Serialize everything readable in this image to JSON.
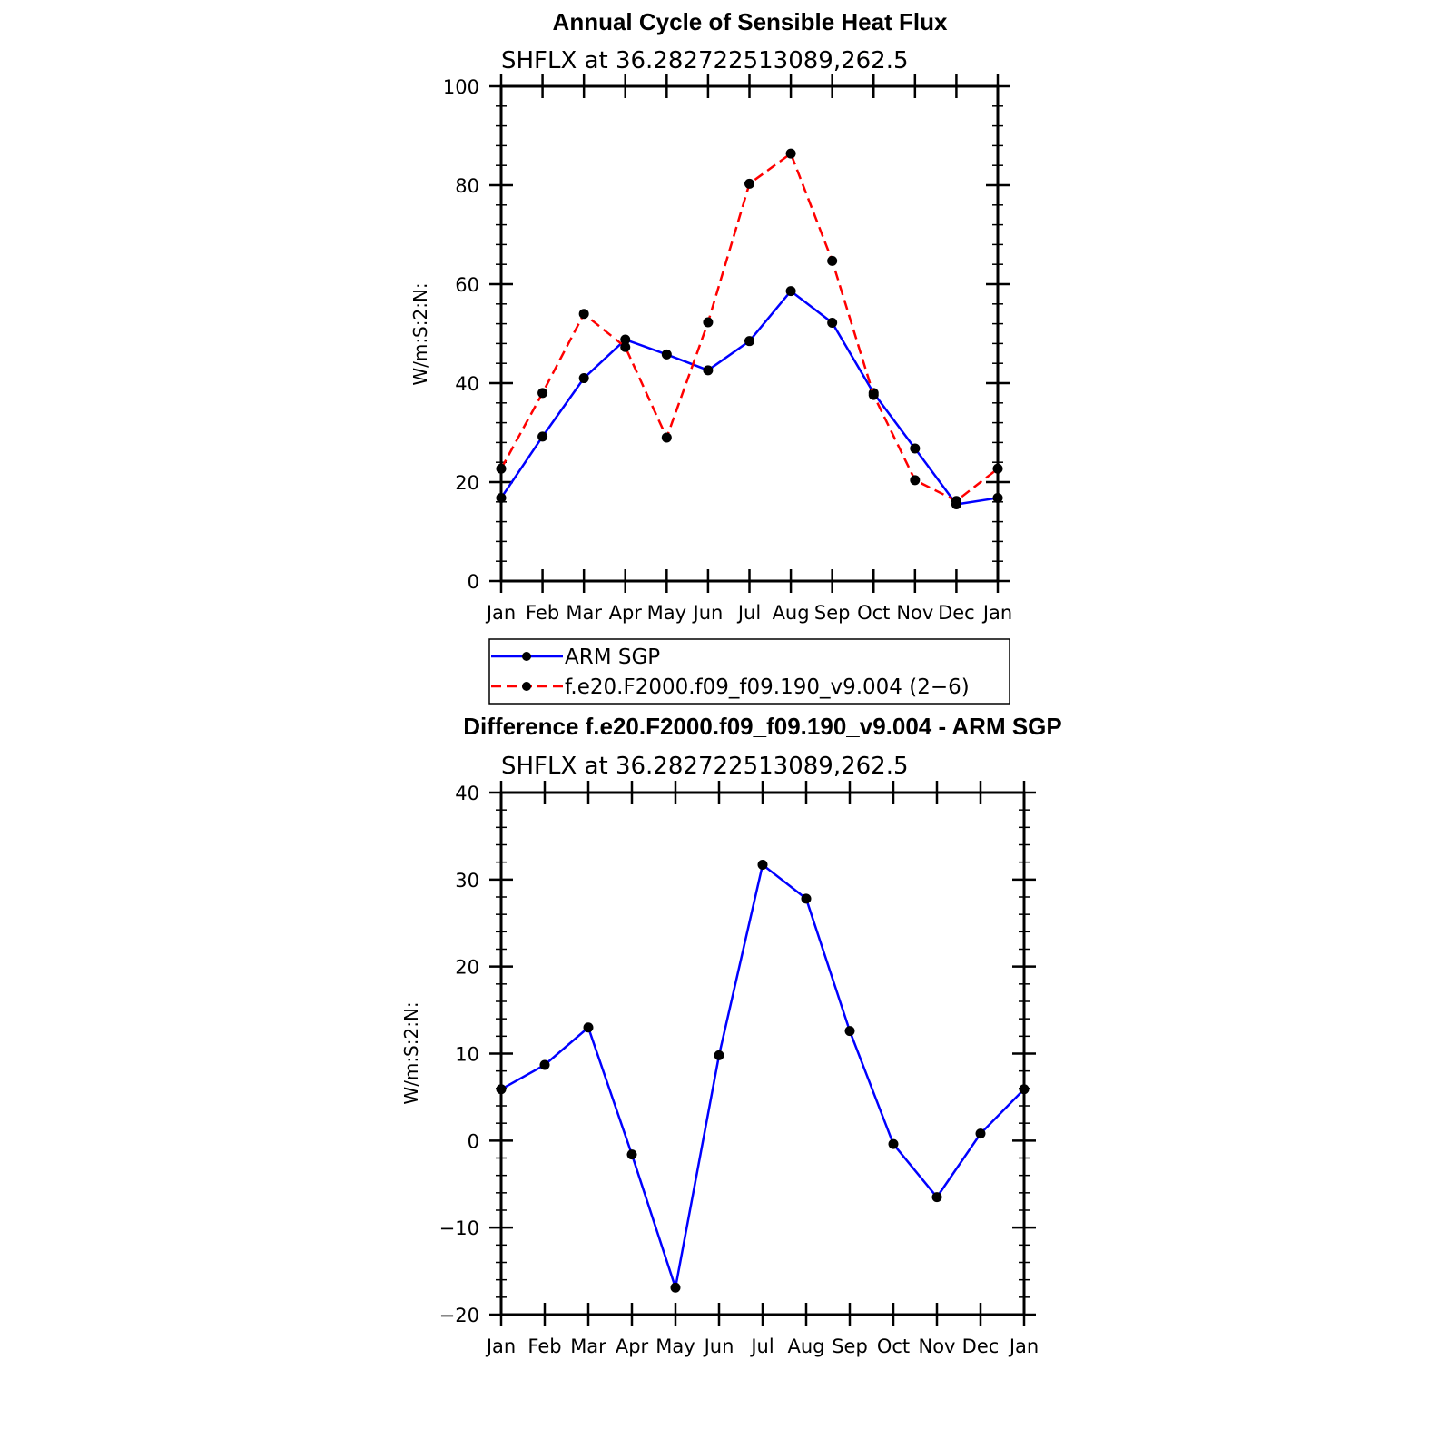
{
  "chart_data": [
    {
      "type": "line",
      "title": "Annual Cycle of Sensible Heat Flux",
      "subtitle": "SHFLX at 36.282722513089,262.5",
      "ylabel": "W/m:S:2:N:",
      "ylim": [
        0,
        100
      ],
      "yticks": [
        "0",
        "20",
        "40",
        "60",
        "80",
        "100"
      ],
      "categories": [
        "Jan",
        "Feb",
        "Mar",
        "Apr",
        "May",
        "Jun",
        "Jul",
        "Aug",
        "Sep",
        "Oct",
        "Nov",
        "Dec",
        "Jan"
      ],
      "series": [
        {
          "name": "ARM SGP",
          "color": "#0000ff",
          "dash": "solid",
          "values": [
            16.8,
            29.2,
            41.0,
            48.8,
            45.8,
            42.6,
            48.5,
            58.6,
            52.2,
            38.0,
            26.8,
            15.5,
            16.8
          ]
        },
        {
          "name": "f.e20.F2000.f09_f09.190_v9.004 (2−6)",
          "color": "#ff0000",
          "dash": "dashed",
          "values": [
            22.7,
            38.0,
            54.0,
            47.3,
            29.0,
            52.3,
            80.3,
            86.4,
            64.7,
            37.6,
            20.4,
            16.2,
            22.7
          ]
        }
      ],
      "legend_position": "bottom"
    },
    {
      "type": "line",
      "title": "Difference f.e20.F2000.f09_f09.190_v9.004 - ARM SGP",
      "subtitle": "SHFLX at 36.282722513089,262.5",
      "ylabel": "W/m:S:2:N:",
      "ylim": [
        -20,
        40
      ],
      "yticks": [
        "−20",
        "−10",
        "0",
        "10",
        "20",
        "30",
        "40"
      ],
      "categories": [
        "Jan",
        "Feb",
        "Mar",
        "Apr",
        "May",
        "Jun",
        "Jul",
        "Aug",
        "Sep",
        "Oct",
        "Nov",
        "Dec",
        "Jan"
      ],
      "series": [
        {
          "color": "#0000ff",
          "dash": "solid",
          "values": [
            5.9,
            8.7,
            13.0,
            -1.6,
            -16.9,
            9.8,
            31.7,
            27.8,
            12.6,
            -0.4,
            -6.5,
            0.8,
            5.9
          ]
        }
      ]
    }
  ]
}
